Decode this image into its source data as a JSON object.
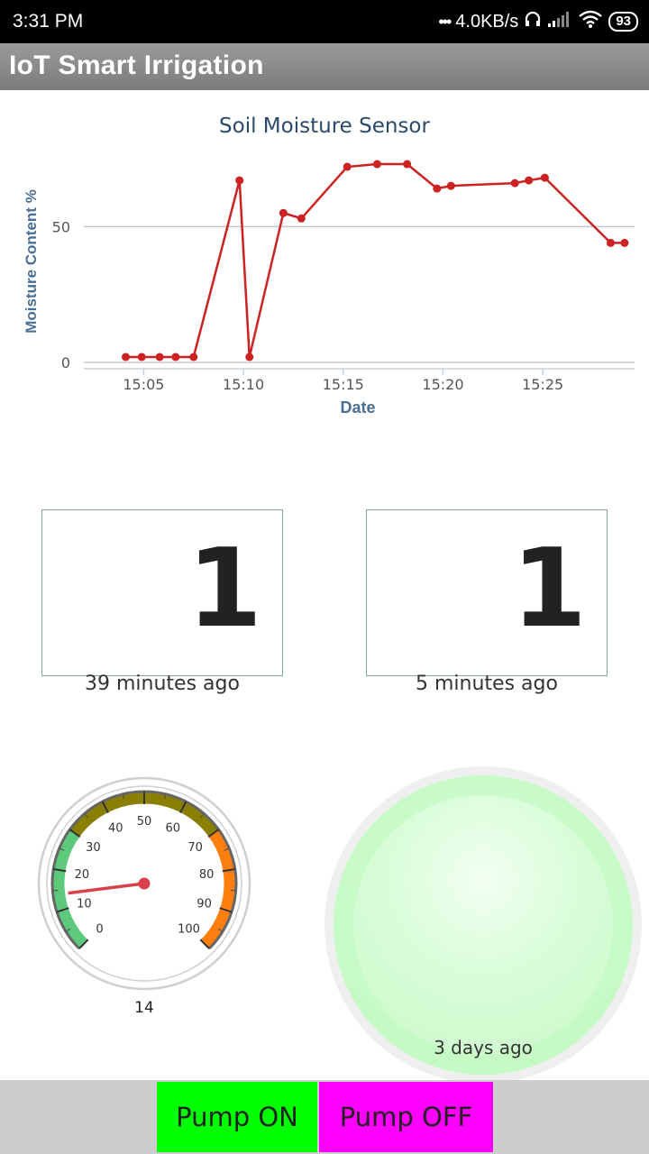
{
  "status_bar": {
    "time": "3:31 PM",
    "network_speed": "4.0KB/s",
    "battery": "93",
    "icons": [
      "dots-icon",
      "headset-icon",
      "signal-icon",
      "wifi-icon",
      "battery-icon"
    ]
  },
  "app": {
    "title": "IoT Smart Irrigation"
  },
  "chart_data": {
    "type": "line",
    "title": "Soil Moisture Sensor",
    "xlabel": "Date",
    "ylabel": "Moisture Content %",
    "x_tick_labels": [
      "15:05",
      "15:10",
      "15:15",
      "15:20",
      "15:25"
    ],
    "y_tick_labels": [
      "0",
      "50"
    ],
    "ylim": [
      0,
      75
    ],
    "xlim_minutes": [
      64,
      29.5
    ],
    "grid": true,
    "series": [
      {
        "color": "#cc2222",
        "points": [
          {
            "x": "15:04.1",
            "y": 2
          },
          {
            "x": "15:04.9",
            "y": 2
          },
          {
            "x": "15:05.8",
            "y": 2
          },
          {
            "x": "15:06.6",
            "y": 2
          },
          {
            "x": "15:07.5",
            "y": 2
          },
          {
            "x": "15:09.8",
            "y": 67
          },
          {
            "x": "15:10.3",
            "y": 2
          },
          {
            "x": "15:12.0",
            "y": 55
          },
          {
            "x": "15:12.9",
            "y": 53
          },
          {
            "x": "15:15.2",
            "y": 72
          },
          {
            "x": "15:16.7",
            "y": 73
          },
          {
            "x": "15:18.2",
            "y": 73
          },
          {
            "x": "15:19.7",
            "y": 64
          },
          {
            "x": "15:20.4",
            "y": 65
          },
          {
            "x": "15:23.6",
            "y": 66
          },
          {
            "x": "15:24.3",
            "y": 67
          },
          {
            "x": "15:25.1",
            "y": 68
          },
          {
            "x": "15:28.4",
            "y": 44
          },
          {
            "x": "15:29.1",
            "y": 44
          }
        ]
      }
    ]
  },
  "cards": [
    {
      "value": "1",
      "caption": "39 minutes ago"
    },
    {
      "value": "1",
      "caption": "5 minutes ago"
    }
  ],
  "gauge": {
    "value": 14,
    "value_label": "14",
    "min": 0,
    "max": 100,
    "tick_labels": [
      "0",
      "10",
      "20",
      "30",
      "40",
      "50",
      "60",
      "70",
      "80",
      "90",
      "100"
    ],
    "bands": [
      {
        "from": 0,
        "to": 30,
        "color": "#5dc97b"
      },
      {
        "from": 30,
        "to": 70,
        "color": "#8a7f00"
      },
      {
        "from": 70,
        "to": 100,
        "color": "#ff7f0e"
      }
    ],
    "needle_color": "#d9404a"
  },
  "led": {
    "caption": "3 days ago",
    "color": "#c6f9c6"
  },
  "buttons": {
    "pump_on": "Pump ON",
    "pump_off": "Pump OFF"
  }
}
